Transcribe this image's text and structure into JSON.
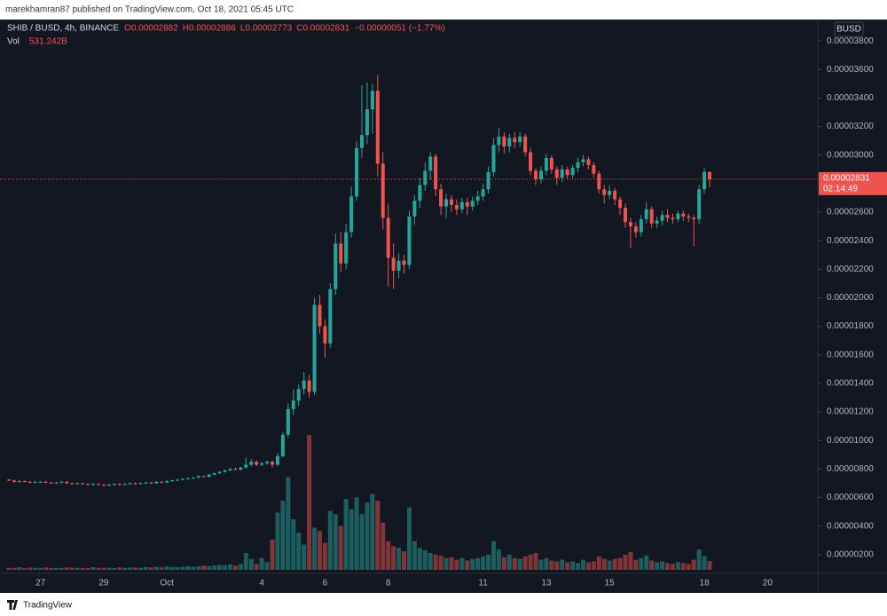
{
  "header": {
    "published": "marekhamran87 published on TradingView.com, Oct 18, 2021 05:45 UTC"
  },
  "footer": {
    "brand": "TradingView"
  },
  "chart_data": {
    "type": "candlestick",
    "symbol": "SHIB / BUSD, 4h, BINANCE",
    "legend": [
      "O0.00002882",
      "H0.00002886",
      "L0.00002773",
      "C0.00002831",
      "−0.00000051 (−1.77%)"
    ],
    "currency": "BUSD",
    "last_price_label": "0.00002831",
    "countdown": "02:14:49",
    "up_color": "#26a69a",
    "down_color": "#ef5350",
    "grid": false,
    "ylim": [
      9.3e-07,
      3.95e-05
    ],
    "yticks": [
      {
        "value": 2e-06,
        "label": "0.00000200"
      },
      {
        "value": 4e-06,
        "label": "0.00000400"
      },
      {
        "value": 6e-06,
        "label": "0.00000600"
      },
      {
        "value": 8e-06,
        "label": "0.00000800"
      },
      {
        "value": 1e-05,
        "label": "0.00001000"
      },
      {
        "value": 1.2e-05,
        "label": "0.00001200"
      },
      {
        "value": 1.4e-05,
        "label": "0.00001400"
      },
      {
        "value": 1.6e-05,
        "label": "0.00001600"
      },
      {
        "value": 1.8e-05,
        "label": "0.00001800"
      },
      {
        "value": 2e-05,
        "label": "0.00002000"
      },
      {
        "value": 2.2e-05,
        "label": "0.00002200"
      },
      {
        "value": 2.4e-05,
        "label": "0.00002400"
      },
      {
        "value": 2.6e-05,
        "label": "0.00002600"
      },
      {
        "value": 2.8e-05,
        "label": "0.00002800"
      },
      {
        "value": 3e-05,
        "label": "0.00003000"
      },
      {
        "value": 3.2e-05,
        "label": "0.00003200"
      },
      {
        "value": 3.4e-05,
        "label": "0.00003400"
      },
      {
        "value": 3.6e-05,
        "label": "0.00003600"
      },
      {
        "value": 3.8e-05,
        "label": "0.00003800"
      }
    ],
    "categories": [
      null,
      null,
      null,
      null,
      null,
      null,
      "27",
      null,
      null,
      null,
      null,
      null,
      null,
      null,
      null,
      null,
      null,
      null,
      "29",
      null,
      null,
      null,
      null,
      null,
      null,
      null,
      null,
      null,
      null,
      null,
      "Oct",
      null,
      null,
      null,
      null,
      null,
      null,
      null,
      null,
      null,
      null,
      null,
      null,
      null,
      null,
      null,
      null,
      null,
      "4",
      null,
      null,
      null,
      null,
      null,
      null,
      null,
      null,
      null,
      null,
      null,
      "6",
      null,
      null,
      null,
      null,
      null,
      null,
      null,
      null,
      null,
      null,
      null,
      "8",
      null,
      null,
      null,
      null,
      null,
      null,
      null,
      null,
      null,
      null,
      null,
      null,
      null,
      null,
      null,
      null,
      null,
      "11",
      null,
      null,
      null,
      null,
      null,
      null,
      null,
      null,
      null,
      null,
      null,
      "13",
      null,
      null,
      null,
      null,
      null,
      null,
      null,
      null,
      null,
      null,
      null,
      "15",
      null,
      null,
      null,
      null,
      null,
      null,
      null,
      null,
      null,
      null,
      null,
      null,
      null,
      null,
      null,
      null,
      null,
      "18",
      null,
      null,
      null,
      null,
      null,
      null,
      null,
      null,
      null,
      null,
      null,
      "20"
    ],
    "candles": [
      [
        7.25e-06,
        7.3e-06,
        7.15e-06,
        7.2e-06
      ],
      [
        7.2e-06,
        7.25e-06,
        7.05e-06,
        7.1e-06
      ],
      [
        7.1e-06,
        7.2e-06,
        7.05e-06,
        7.15e-06
      ],
      [
        7.15e-06,
        7.2e-06,
        7.05e-06,
        7.1e-06
      ],
      [
        7.1e-06,
        7.15e-06,
        7e-06,
        7.05e-06
      ],
      [
        7.05e-06,
        7.15e-06,
        7e-06,
        7.1e-06
      ],
      [
        7.1e-06,
        7.15e-06,
        7.05e-06,
        7.1e-06
      ],
      [
        7.1e-06,
        7.15e-06,
        7e-06,
        7.05e-06
      ],
      [
        7.05e-06,
        7.1e-06,
        6.95e-06,
        7e-06
      ],
      [
        7e-06,
        7.1e-06,
        6.95e-06,
        7.05e-06
      ],
      [
        7.05e-06,
        7.15e-06,
        7e-06,
        7.1e-06
      ],
      [
        7.1e-06,
        7.15e-06,
        6.95e-06,
        7e-06
      ],
      [
        7e-06,
        7.05e-06,
        6.9e-06,
        6.95e-06
      ],
      [
        6.95e-06,
        7.05e-06,
        6.9e-06,
        7e-06
      ],
      [
        7e-06,
        7.05e-06,
        6.9e-06,
        6.95e-06
      ],
      [
        6.95e-06,
        7e-06,
        6.85e-06,
        6.9e-06
      ],
      [
        6.9e-06,
        7e-06,
        6.85e-06,
        6.95e-06
      ],
      [
        6.95e-06,
        7e-06,
        6.85e-06,
        6.9e-06
      ],
      [
        6.9e-06,
        6.95e-06,
        6.8e-06,
        6.85e-06
      ],
      [
        6.85e-06,
        6.95e-06,
        6.8e-06,
        6.9e-06
      ],
      [
        6.9e-06,
        7e-06,
        6.85e-06,
        6.95e-06
      ],
      [
        6.95e-06,
        7e-06,
        6.85e-06,
        6.9e-06
      ],
      [
        6.9e-06,
        7e-06,
        6.85e-06,
        6.95e-06
      ],
      [
        6.95e-06,
        7.05e-06,
        6.9e-06,
        7e-06
      ],
      [
        7e-06,
        7.05e-06,
        6.9e-06,
        6.95e-06
      ],
      [
        6.95e-06,
        7.05e-06,
        6.9e-06,
        7e-06
      ],
      [
        7e-06,
        7.1e-06,
        6.95e-06,
        7.05e-06
      ],
      [
        7.05e-06,
        7.1e-06,
        6.95e-06,
        7e-06
      ],
      [
        7e-06,
        7.15e-06,
        6.95e-06,
        7.1e-06
      ],
      [
        7.1e-06,
        7.15e-06,
        7e-06,
        7.05e-06
      ],
      [
        7.05e-06,
        7.2e-06,
        7e-06,
        7.15e-06
      ],
      [
        7.15e-06,
        7.25e-06,
        7.1e-06,
        7.2e-06
      ],
      [
        7.2e-06,
        7.3e-06,
        7.15e-06,
        7.25e-06
      ],
      [
        7.25e-06,
        7.35e-06,
        7.2e-06,
        7.3e-06
      ],
      [
        7.3e-06,
        7.4e-06,
        7.25e-06,
        7.35e-06
      ],
      [
        7.35e-06,
        7.45e-06,
        7.3e-06,
        7.4e-06
      ],
      [
        7.4e-06,
        7.55e-06,
        7.35e-06,
        7.5e-06
      ],
      [
        7.5e-06,
        7.55e-06,
        7.4e-06,
        7.45e-06
      ],
      [
        7.45e-06,
        7.65e-06,
        7.4e-06,
        7.6e-06
      ],
      [
        7.6e-06,
        7.75e-06,
        7.55e-06,
        7.7e-06
      ],
      [
        7.7e-06,
        7.85e-06,
        7.65e-06,
        7.8e-06
      ],
      [
        7.8e-06,
        7.95e-06,
        7.75e-06,
        7.9e-06
      ],
      [
        7.9e-06,
        8.05e-06,
        7.85e-06,
        8e-06
      ],
      [
        8e-06,
        8.1e-06,
        7.9e-06,
        7.95e-06
      ],
      [
        7.95e-06,
        8.15e-06,
        7.9e-06,
        8.1e-06
      ],
      [
        8.1e-06,
        8.8e-06,
        8.05e-06,
        8.3e-06
      ],
      [
        8.3e-06,
        8.7e-06,
        8.2e-06,
        8.5e-06
      ],
      [
        8.5e-06,
        8.6e-06,
        8.2e-06,
        8.3e-06
      ],
      [
        8.3e-06,
        8.5e-06,
        8.2e-06,
        8.4e-06
      ],
      [
        8.4e-06,
        8.6e-06,
        8.3e-06,
        8.5e-06
      ],
      [
        8.5e-06,
        8.6e-06,
        8.1e-06,
        8.3e-06
      ],
      [
        8.3e-06,
        9.1e-06,
        8.2e-06,
        8.9e-06
      ],
      [
        8.9e-06,
        1.06e-05,
        8.8e-06,
        1.04e-05
      ],
      [
        1.04e-05,
        1.26e-05,
        1.02e-05,
        1.22e-05
      ],
      [
        1.22e-05,
        1.36e-05,
        1.18e-05,
        1.28e-05
      ],
      [
        1.28e-05,
        1.39e-05,
        1.24e-05,
        1.36e-05
      ],
      [
        1.36e-05,
        1.48e-05,
        1.32e-05,
        1.42e-05
      ],
      [
        1.42e-05,
        1.46e-05,
        1.3e-05,
        1.34e-05
      ],
      [
        1.34e-05,
        2e-05,
        1.32e-05,
        1.95e-05
      ],
      [
        1.95e-05,
        2.02e-05,
        1.75e-05,
        1.8e-05
      ],
      [
        1.8e-05,
        1.85e-05,
        1.58e-05,
        1.68e-05
      ],
      [
        1.68e-05,
        2.1e-05,
        1.65e-05,
        2.06e-05
      ],
      [
        2.06e-05,
        2.45e-05,
        2.02e-05,
        2.38e-05
      ],
      [
        2.38e-05,
        2.46e-05,
        2.18e-05,
        2.24e-05
      ],
      [
        2.24e-05,
        2.52e-05,
        2.2e-05,
        2.46e-05
      ],
      [
        2.46e-05,
        2.78e-05,
        2.42e-05,
        2.71e-05
      ],
      [
        2.71e-05,
        3.1e-05,
        2.68e-05,
        3.05e-05
      ],
      [
        3.05e-05,
        3.49e-05,
        2.98e-05,
        3.14e-05
      ],
      [
        3.14e-05,
        3.51e-05,
        3.08e-05,
        3.32e-05
      ],
      [
        3.32e-05,
        3.5e-05,
        3.15e-05,
        3.45e-05
      ],
      [
        3.45e-05,
        3.56e-05,
        2.85e-05,
        2.94e-05
      ],
      [
        2.94e-05,
        3.02e-05,
        2.48e-05,
        2.56e-05
      ],
      [
        2.56e-05,
        2.66e-05,
        2.08e-05,
        2.28e-05
      ],
      [
        2.28e-05,
        2.38e-05,
        2.06e-05,
        2.19e-05
      ],
      [
        2.19e-05,
        2.31e-05,
        2.14e-05,
        2.26e-05
      ],
      [
        2.26e-05,
        2.3e-05,
        2.17e-05,
        2.23e-05
      ],
      [
        2.23e-05,
        2.61e-05,
        2.2e-05,
        2.57e-05
      ],
      [
        2.57e-05,
        2.72e-05,
        2.51e-05,
        2.68e-05
      ],
      [
        2.68e-05,
        2.84e-05,
        2.63e-05,
        2.79e-05
      ],
      [
        2.79e-05,
        2.95e-05,
        2.75e-05,
        2.89e-05
      ],
      [
        2.89e-05,
        3.02e-05,
        2.83e-05,
        2.99e-05
      ],
      [
        2.99e-05,
        3.01e-05,
        2.71e-05,
        2.76e-05
      ],
      [
        2.76e-05,
        2.8e-05,
        2.58e-05,
        2.64e-05
      ],
      [
        2.64e-05,
        2.73e-05,
        2.56e-05,
        2.69e-05
      ],
      [
        2.69e-05,
        2.72e-05,
        2.6e-05,
        2.65e-05
      ],
      [
        2.65e-05,
        2.69e-05,
        2.58e-05,
        2.62e-05
      ],
      [
        2.62e-05,
        2.7e-05,
        2.59e-05,
        2.67e-05
      ],
      [
        2.67e-05,
        2.7e-05,
        2.58e-05,
        2.64e-05
      ],
      [
        2.64e-05,
        2.71e-05,
        2.61e-05,
        2.68e-05
      ],
      [
        2.68e-05,
        2.75e-05,
        2.65e-05,
        2.71e-05
      ],
      [
        2.71e-05,
        2.8e-05,
        2.68e-05,
        2.76e-05
      ],
      [
        2.76e-05,
        2.92e-05,
        2.73e-05,
        2.88e-05
      ],
      [
        2.88e-05,
        3.12e-05,
        2.85e-05,
        3.07e-05
      ],
      [
        3.07e-05,
        3.19e-05,
        3.02e-05,
        3.13e-05
      ],
      [
        3.13e-05,
        3.16e-05,
        3.01e-05,
        3.06e-05
      ],
      [
        3.06e-05,
        3.15e-05,
        3.02e-05,
        3.12e-05
      ],
      [
        3.12e-05,
        3.16e-05,
        3.05e-05,
        3.09e-05
      ],
      [
        3.09e-05,
        3.16e-05,
        3.06e-05,
        3.13e-05
      ],
      [
        3.13e-05,
        3.15e-05,
        2.99e-05,
        3.02e-05
      ],
      [
        3.02e-05,
        3.05e-05,
        2.86e-05,
        2.89e-05
      ],
      [
        2.89e-05,
        2.91e-05,
        2.79e-05,
        2.83e-05
      ],
      [
        2.83e-05,
        2.92e-05,
        2.8e-05,
        2.89e-05
      ],
      [
        2.89e-05,
        3.01e-05,
        2.86e-05,
        2.98e-05
      ],
      [
        2.98e-05,
        3e-05,
        2.87e-05,
        2.9e-05
      ],
      [
        2.9e-05,
        2.92e-05,
        2.79e-05,
        2.84e-05
      ],
      [
        2.84e-05,
        2.93e-05,
        2.81e-05,
        2.9e-05
      ],
      [
        2.9e-05,
        2.92e-05,
        2.83e-05,
        2.86e-05
      ],
      [
        2.86e-05,
        2.93e-05,
        2.84e-05,
        2.91e-05
      ],
      [
        2.91e-05,
        2.98e-05,
        2.88e-05,
        2.95e-05
      ],
      [
        2.95e-05,
        3e-05,
        2.92e-05,
        2.97e-05
      ],
      [
        2.97e-05,
        2.99e-05,
        2.9e-05,
        2.93e-05
      ],
      [
        2.93e-05,
        2.95e-05,
        2.84e-05,
        2.87e-05
      ],
      [
        2.87e-05,
        2.89e-05,
        2.73e-05,
        2.76e-05
      ],
      [
        2.76e-05,
        2.79e-05,
        2.66e-05,
        2.72e-05
      ],
      [
        2.72e-05,
        2.79e-05,
        2.69e-05,
        2.75e-05
      ],
      [
        2.75e-05,
        2.77e-05,
        2.65e-05,
        2.69e-05
      ],
      [
        2.69e-05,
        2.71e-05,
        2.58e-05,
        2.63e-05
      ],
      [
        2.63e-05,
        2.66e-05,
        2.49e-05,
        2.53e-05
      ],
      [
        2.53e-05,
        2.56e-05,
        2.35e-05,
        2.5e-05
      ],
      [
        2.5e-05,
        2.53e-05,
        2.42e-05,
        2.46e-05
      ],
      [
        2.46e-05,
        2.58e-05,
        2.43e-05,
        2.55e-05
      ],
      [
        2.55e-05,
        2.67e-05,
        2.52e-05,
        2.62e-05
      ],
      [
        2.62e-05,
        2.64e-05,
        2.49e-05,
        2.52e-05
      ],
      [
        2.52e-05,
        2.57e-05,
        2.49e-05,
        2.54e-05
      ],
      [
        2.54e-05,
        2.61e-05,
        2.51e-05,
        2.58e-05
      ],
      [
        2.58e-05,
        2.62e-05,
        2.53e-05,
        2.56e-05
      ],
      [
        2.56e-05,
        2.59e-05,
        2.52e-05,
        2.55e-05
      ],
      [
        2.55e-05,
        2.61e-05,
        2.53e-05,
        2.59e-05
      ],
      [
        2.59e-05,
        2.61e-05,
        2.54e-05,
        2.57e-05
      ],
      [
        2.57e-05,
        2.59e-05,
        2.53e-05,
        2.56e-05
      ],
      [
        2.56e-05,
        2.58e-05,
        2.36e-05,
        2.55e-05
      ],
      [
        2.55e-05,
        2.79e-05,
        2.52e-05,
        2.76e-05
      ],
      [
        2.76e-05,
        2.91e-05,
        2.73e-05,
        2.882e-05
      ],
      [
        2.882e-05,
        2.886e-05,
        2.773e-05,
        2.831e-05
      ],
      null,
      null,
      null,
      null,
      null,
      null,
      null,
      null,
      null,
      null,
      null
    ],
    "volume": {
      "name": "Vol",
      "last_label": "531.242B",
      "values": [
        120,
        110,
        150,
        100,
        130,
        120,
        110,
        140,
        100,
        120,
        110,
        150,
        130,
        120,
        100,
        110,
        160,
        120,
        100,
        130,
        110,
        150,
        120,
        140,
        130,
        120,
        160,
        140,
        180,
        150,
        200,
        170,
        160,
        180,
        220,
        190,
        210,
        250,
        230,
        260,
        300,
        280,
        320,
        250,
        340,
        1000,
        650,
        350,
        700,
        450,
        1800,
        3400,
        4100,
        5500,
        3000,
        2200,
        1500,
        8000,
        2500,
        2300,
        1600,
        3500,
        3300,
        2600,
        4200,
        3600,
        4300,
        3300,
        4000,
        4500,
        4100,
        2800,
        1700,
        1400,
        1300,
        1100,
        3700,
        1700,
        1300,
        1150,
        1000,
        900,
        850,
        700,
        750,
        600,
        700,
        550,
        650,
        700,
        800,
        900,
        1700,
        1200,
        750,
        900,
        700,
        650,
        800,
        900,
        1000,
        600,
        700,
        550,
        500,
        600,
        450,
        500,
        400,
        600,
        450,
        500,
        800,
        650,
        550,
        650,
        700,
        900,
        1050,
        600,
        700,
        850,
        550,
        450,
        500,
        400,
        350,
        450,
        400,
        350,
        600,
        1200,
        800,
        531.242,
        null,
        null,
        null,
        null,
        null,
        null,
        null,
        null,
        null,
        null,
        null
      ]
    }
  }
}
